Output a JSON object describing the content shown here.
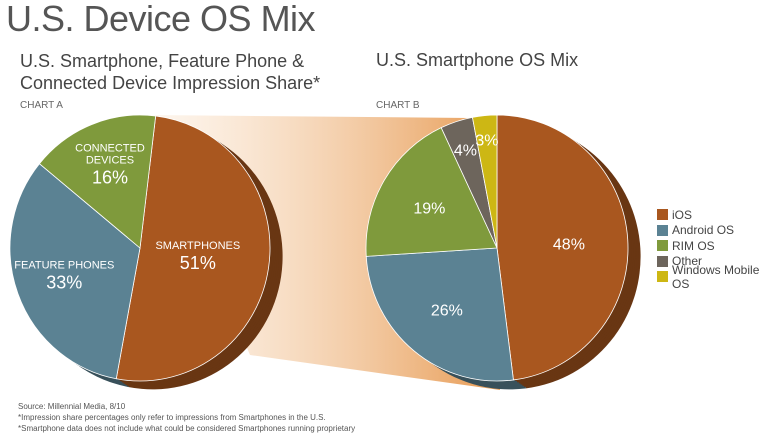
{
  "title": "U.S. Device OS Mix",
  "footnotes": [
    "Source: Millennial Media, 8/10",
    "*Impression share percentages only refer to impressions from Smartphones in the U.S.",
    "*Smartphone data does not include what could be considered Smartphones running proprietary"
  ],
  "chart_data": [
    {
      "type": "pie",
      "chart_label": "CHART A",
      "title": "U.S. Smartphone, Feature Phone & Connected Device Impression Share*",
      "slices": [
        {
          "label": "SMARTPHONES",
          "value": 51,
          "display": "51%",
          "color": "#a9571f"
        },
        {
          "label": "FEATURE PHONES",
          "value": 33,
          "display": "33%",
          "color": "#5b8293"
        },
        {
          "label": "CONNECTED DEVICES",
          "value": 16,
          "display": "16%",
          "color": "#7f9a3c"
        }
      ]
    },
    {
      "type": "pie",
      "chart_label": "CHART B",
      "title": "U.S. Smartphone OS Mix",
      "legend": "right",
      "slices": [
        {
          "label": "iOS",
          "value": 48,
          "display": "48%",
          "color": "#a9571f"
        },
        {
          "label": "Android OS",
          "value": 26,
          "display": "26%",
          "color": "#5b8293"
        },
        {
          "label": "RIM OS",
          "value": 19,
          "display": "19%",
          "color": "#7f9a3c"
        },
        {
          "label": "Other",
          "value": 4,
          "display": "4%",
          "color": "#6d655c"
        },
        {
          "label": "Windows Mobile OS",
          "value": 3,
          "display": "3%",
          "color": "#cdb714"
        }
      ]
    }
  ]
}
